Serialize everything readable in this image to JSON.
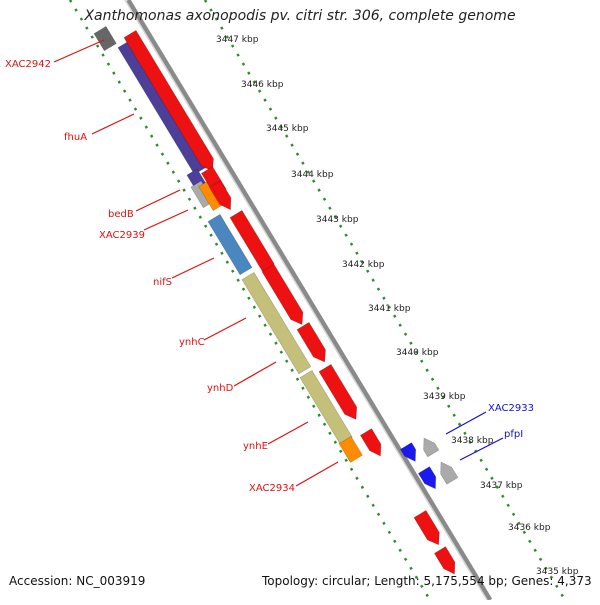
{
  "title": "Xanthomonas axonopodis pv. citri str. 306, complete genome",
  "footer": {
    "accession": "Accession: NC_003919",
    "summary": "Topology: circular; Length: 5,175,554 bp; Genes: 4,373"
  },
  "kbp_ticks": [
    "3447 kbp",
    "3446 kbp",
    "3445 kbp",
    "3444 kbp",
    "3443 kbp",
    "3442 kbp",
    "3441 kbp",
    "3440 kbp",
    "3439 kbp",
    "3438 kbp",
    "3437 kbp",
    "3436 kbp",
    "3435 kbp"
  ],
  "gene_labels_left": [
    "XAC2942",
    "fhuA",
    "bedB",
    "XAC2939",
    "nifS",
    "ynhC",
    "ynhD",
    "ynhE",
    "XAC2934"
  ],
  "gene_labels_right": [
    "XAC2933",
    "pfpI"
  ],
  "colors": {
    "forward_gene": "#ee1111",
    "reverse_gene": "#1a1aee",
    "label_red": "#dd1111",
    "label_blue": "#1111cc",
    "backbone": "#8a8a8a",
    "ruler": "#2e8b2e",
    "purple": "#4b3f9a",
    "steelblue": "#4a86c0",
    "khaki": "#c4c07a",
    "orange": "#ff8c00",
    "grey": "#aaaaaa"
  }
}
